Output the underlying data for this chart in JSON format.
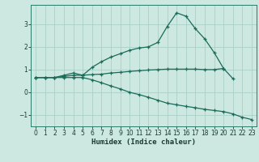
{
  "title": "",
  "xlabel": "Humidex (Indice chaleur)",
  "background_color": "#cce8e0",
  "grid_color": "#aacfc8",
  "line_color": "#1a6b5a",
  "x_values": [
    0,
    1,
    2,
    3,
    4,
    5,
    6,
    7,
    8,
    9,
    10,
    11,
    12,
    13,
    14,
    15,
    16,
    17,
    18,
    19,
    20,
    21,
    22,
    23
  ],
  "line1": [
    0.65,
    0.65,
    0.65,
    0.75,
    0.85,
    0.75,
    1.1,
    1.35,
    1.55,
    1.7,
    1.85,
    1.95,
    2.0,
    2.2,
    2.9,
    3.5,
    3.35,
    2.8,
    2.35,
    1.75,
    1.05,
    null,
    null,
    null
  ],
  "line2": [
    0.65,
    0.65,
    0.65,
    0.7,
    0.75,
    0.75,
    0.78,
    0.8,
    0.85,
    0.88,
    0.92,
    0.95,
    0.98,
    1.0,
    1.02,
    1.02,
    1.02,
    1.02,
    1.0,
    1.0,
    1.05,
    0.6,
    null,
    null
  ],
  "line3": [
    0.65,
    0.65,
    0.65,
    0.65,
    0.65,
    0.65,
    0.55,
    0.42,
    0.28,
    0.15,
    0.0,
    -0.1,
    -0.22,
    -0.35,
    -0.48,
    -0.55,
    -0.62,
    -0.68,
    -0.75,
    -0.8,
    -0.85,
    -0.95,
    -1.1,
    -1.2
  ],
  "ylim": [
    -1.5,
    3.85
  ],
  "xlim": [
    -0.5,
    23.5
  ],
  "yticks": [
    -1,
    0,
    1,
    2,
    3
  ],
  "xticks": [
    0,
    1,
    2,
    3,
    4,
    5,
    6,
    7,
    8,
    9,
    10,
    11,
    12,
    13,
    14,
    15,
    16,
    17,
    18,
    19,
    20,
    21,
    22,
    23
  ]
}
